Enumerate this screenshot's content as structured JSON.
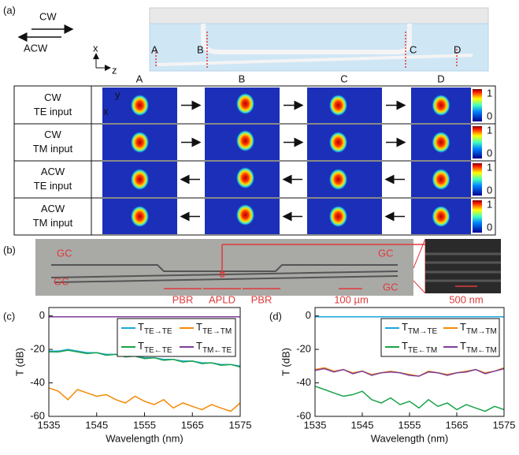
{
  "panel_a": {
    "label": "(a)",
    "cw": "CW",
    "acw": "ACW",
    "axis_x": "x",
    "axis_z": "z",
    "device_points": [
      "A",
      "B",
      "C",
      "D"
    ],
    "columns": [
      "A",
      "B",
      "C",
      "D"
    ],
    "inset_axis_y": "y",
    "inset_axis_x": "x",
    "rows": [
      {
        "mode": "CW",
        "input": "TE input",
        "colorbar": [
          "1",
          "0"
        ]
      },
      {
        "mode": "CW",
        "input": "TM input",
        "colorbar": [
          "1",
          "0"
        ]
      },
      {
        "mode": "ACW",
        "input": "TE input",
        "colorbar": [
          "1",
          "0"
        ]
      },
      {
        "mode": "ACW",
        "input": "TM input",
        "colorbar": [
          "1",
          "0"
        ]
      }
    ]
  },
  "panel_b": {
    "label": "(b)",
    "gc": [
      "GC",
      "GC",
      "GC",
      "GC"
    ],
    "sections": [
      "PBR",
      "APLD",
      "PBR"
    ],
    "scale_bars": [
      "100 µm",
      "500 nm"
    ]
  },
  "panel_c_label": "(c)",
  "panel_d_label": "(d)",
  "chart_data": [
    {
      "type": "line",
      "xlabel": "Wavelength (nm)",
      "ylabel": "T (dB)",
      "x": [
        1535,
        1537,
        1539,
        1541,
        1543,
        1545,
        1547,
        1549,
        1551,
        1553,
        1555,
        1557,
        1559,
        1561,
        1563,
        1565,
        1567,
        1569,
        1571,
        1573,
        1575
      ],
      "xlim": [
        1535,
        1575
      ],
      "xticks": [
        1535,
        1545,
        1555,
        1565,
        1575
      ],
      "ylim": [
        -60,
        5
      ],
      "yticks": [
        -60,
        -40,
        -20,
        0
      ],
      "series": [
        {
          "name": "TTE→TE",
          "color": "#1ba6dc",
          "values": [
            -21,
            -21,
            -20,
            -21,
            -22,
            -22,
            -23,
            -23,
            -24,
            -24,
            -25,
            -25,
            -26,
            -26,
            -27,
            -27,
            -28,
            -28,
            -29,
            -29,
            -30
          ]
        },
        {
          "name": "TTE→TM",
          "color": "#f58a07",
          "values": [
            -43,
            -45,
            -50,
            -44,
            -46,
            -48,
            -47,
            -50,
            -52,
            -48,
            -51,
            -53,
            -50,
            -55,
            -52,
            -54,
            -56,
            -53,
            -55,
            -57,
            -52
          ]
        },
        {
          "name": "TTE←TE",
          "color": "#1aa34a",
          "values": [
            -21.5,
            -21.5,
            -20.5,
            -21.5,
            -22.5,
            -22,
            -23.5,
            -23,
            -24.5,
            -24,
            -25.5,
            -25,
            -26.5,
            -26,
            -27.5,
            -27,
            -28.5,
            -28,
            -29.5,
            -29,
            -30.5
          ]
        },
        {
          "name": "TTM←TE",
          "color": "#7e3f98",
          "values": [
            -0.5,
            -0.5,
            -0.5,
            -0.5,
            -0.5,
            -0.5,
            -0.5,
            -0.5,
            -0.5,
            -0.5,
            -0.5,
            -0.5,
            -0.5,
            -0.5,
            -0.5,
            -0.5,
            -0.5,
            -0.5,
            -0.5,
            -0.5,
            -0.5
          ]
        }
      ]
    },
    {
      "type": "line",
      "xlabel": "Wavelength (nm)",
      "ylabel": "T (dB)",
      "x": [
        1535,
        1537,
        1539,
        1541,
        1543,
        1545,
        1547,
        1549,
        1551,
        1553,
        1555,
        1557,
        1559,
        1561,
        1563,
        1565,
        1567,
        1569,
        1571,
        1573,
        1575
      ],
      "xlim": [
        1535,
        1575
      ],
      "xticks": [
        1535,
        1545,
        1555,
        1565,
        1575
      ],
      "ylim": [
        -60,
        5
      ],
      "yticks": [
        -60,
        -40,
        -20,
        0
      ],
      "series": [
        {
          "name": "TTM→TE",
          "color": "#1ba6dc",
          "values": [
            -0.5,
            -0.5,
            -0.5,
            -0.5,
            -0.5,
            -0.5,
            -0.5,
            -0.5,
            -0.5,
            -0.5,
            -0.5,
            -0.5,
            -0.5,
            -0.5,
            -0.5,
            -0.5,
            -0.5,
            -0.5,
            -0.5,
            -0.5,
            -0.5
          ]
        },
        {
          "name": "TTM→TM",
          "color": "#f58a07",
          "values": [
            -32,
            -31,
            -33,
            -32,
            -34,
            -33,
            -35,
            -34,
            -33,
            -34,
            -35,
            -36,
            -33,
            -34,
            -35,
            -34,
            -33,
            -32,
            -34,
            -33,
            -31
          ]
        },
        {
          "name": "TTE←TM",
          "color": "#1aa34a",
          "values": [
            -42,
            -44,
            -46,
            -48,
            -47,
            -45,
            -50,
            -52,
            -49,
            -53,
            -51,
            -55,
            -50,
            -54,
            -52,
            -56,
            -53,
            -55,
            -57,
            -54,
            -56
          ]
        },
        {
          "name": "TTM←TM",
          "color": "#7e3f98",
          "values": [
            -32.5,
            -31.5,
            -33.5,
            -32,
            -34.5,
            -33,
            -35.5,
            -34,
            -33.5,
            -34,
            -35.5,
            -36,
            -33.5,
            -34,
            -35.5,
            -34,
            -33.5,
            -32,
            -34.5,
            -33,
            -31.5
          ]
        }
      ]
    }
  ]
}
